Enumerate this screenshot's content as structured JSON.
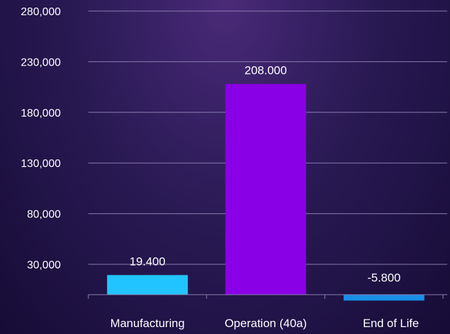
{
  "chart_data": {
    "type": "bar",
    "categories": [
      "Manufacturing",
      "Operation (40a)",
      "End of Life"
    ],
    "values": [
      19400,
      208000,
      -5800
    ],
    "data_labels": [
      "19.400",
      "208.000",
      "-5.800"
    ],
    "bar_colors": [
      "#22c4ff",
      "#8a00e6",
      "#1a8ee6"
    ],
    "yticks": [
      30000,
      80000,
      130000,
      180000,
      230000,
      280000
    ],
    "ytick_labels": [
      "30,000",
      "80,000",
      "130,000",
      "180,000",
      "230,000",
      "280,000"
    ],
    "ylim": [
      -5800,
      280000
    ],
    "grid": true,
    "title": "",
    "xlabel": "",
    "ylabel": ""
  },
  "colors": {
    "gridline": "#8a80b0",
    "axis": "#8a80b0",
    "text": "#ffffff"
  }
}
